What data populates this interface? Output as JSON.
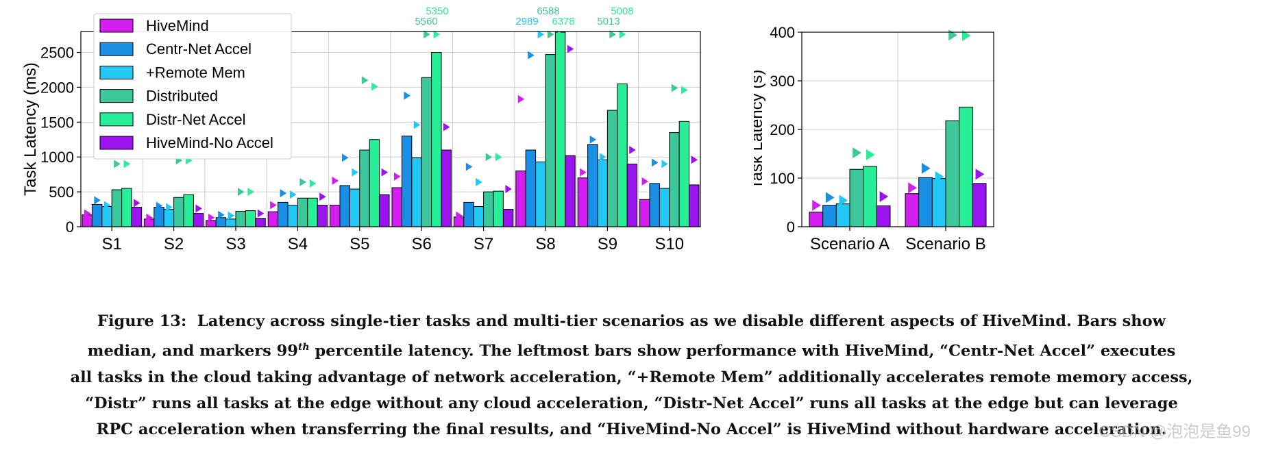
{
  "figure": {
    "caption_label": "Figure 13:",
    "caption_line1": "Latency across single-tier tasks and multi-tier scenarios as we disable different aspects of HiveMind. Bars show",
    "caption_line2a": "median, and markers 99",
    "caption_sup": "th",
    "caption_line2b": " percentile latency. The leftmost bars show performance with HiveMind, “Centr-Net Accel” executes",
    "caption_line3": "all tasks in the cloud taking advantage of network acceleration, “+Remote Mem” additionally accelerates remote memory access,",
    "caption_line4": "“Distr” runs all tasks at the edge without any cloud acceleration, “Distr-Net Accel” runs all tasks at the edge but can leverage",
    "caption_line5": "RPC acceleration when transferring the final results, and “HiveMind-No Accel” is HiveMind without hardware acceleration.",
    "watermark": "CSDN @泡泡是鱼99"
  },
  "chart_data": [
    {
      "type": "bar",
      "title": "",
      "xlabel": "",
      "ylabel": "Task Latency (ms)",
      "ylim": [
        0,
        2800
      ],
      "yticks": [
        0,
        500,
        1000,
        1500,
        2000,
        2500
      ],
      "grid": true,
      "legend_position": "top-left",
      "categories": [
        "S1",
        "S2",
        "S3",
        "S4",
        "S5",
        "S6",
        "S7",
        "S8",
        "S9",
        "S10"
      ],
      "series": [
        {
          "name": "HiveMind",
          "color": "#d21ff0",
          "values": [
            170,
            110,
            90,
            215,
            310,
            560,
            140,
            800,
            700,
            390
          ],
          "p99": [
            190,
            130,
            130,
            310,
            660,
            720,
            160,
            1830,
            780,
            650
          ]
        },
        {
          "name": "Centr-Net Accel",
          "color": "#1a8fe6",
          "values": [
            320,
            280,
            130,
            350,
            590,
            1300,
            350,
            1100,
            1180,
            620
          ],
          "p99": [
            380,
            300,
            170,
            480,
            990,
            1880,
            860,
            2460,
            1250,
            920
          ]
        },
        {
          "name": "+Remote Mem",
          "color": "#22c8f5",
          "values": [
            290,
            250,
            110,
            310,
            540,
            990,
            290,
            930,
            960,
            550
          ],
          "p99": [
            310,
            280,
            160,
            460,
            780,
            1460,
            640,
            2989,
            1000,
            900
          ]
        },
        {
          "name": "Distributed",
          "color": "#3cc89a",
          "values": [
            530,
            420,
            220,
            410,
            1100,
            2140,
            500,
            2470,
            1670,
            1350
          ],
          "p99": [
            900,
            950,
            500,
            640,
            2100,
            5560,
            1000,
            6588,
            5013,
            1990
          ]
        },
        {
          "name": "Distr-Net Accel",
          "color": "#28ee98",
          "values": [
            550,
            460,
            230,
            410,
            1250,
            2500,
            510,
            2790,
            2050,
            1510
          ],
          "p99": [
            900,
            950,
            500,
            620,
            2010,
            5350,
            1000,
            6378,
            5008,
            1960
          ]
        },
        {
          "name": "HiveMind-No Accel",
          "color": "#9a14f0",
          "values": [
            280,
            190,
            120,
            310,
            460,
            1100,
            250,
            1020,
            900,
            600
          ],
          "p99": [
            340,
            260,
            190,
            430,
            780,
            1430,
            540,
            2550,
            1100,
            960
          ]
        }
      ],
      "offscale_labels": [
        {
          "category": "S6",
          "series": "Distr-Net Accel",
          "text": "5350"
        },
        {
          "category": "S6",
          "series": "Distributed",
          "text": "5560"
        },
        {
          "category": "S8",
          "series": "Distributed",
          "text": "6588"
        },
        {
          "category": "S8",
          "series": "+Remote Mem",
          "text": "2989"
        },
        {
          "category": "S8",
          "series": "Distr-Net Accel",
          "text": "6378"
        },
        {
          "category": "S9",
          "series": "Distr-Net Accel",
          "text": "5008"
        },
        {
          "category": "S9",
          "series": "Distributed",
          "text": "5013"
        }
      ]
    },
    {
      "type": "bar",
      "title": "",
      "xlabel": "",
      "ylabel": "Task Latency (s)",
      "ylim": [
        0,
        400
      ],
      "yticks": [
        0,
        100,
        200,
        300,
        400
      ],
      "grid": true,
      "categories": [
        "Scenario A",
        "Scenario B"
      ],
      "series": [
        {
          "name": "HiveMind",
          "color": "#d21ff0",
          "values": [
            30,
            68
          ],
          "p99": [
            44,
            80
          ]
        },
        {
          "name": "Centr-Net Accel",
          "color": "#1a8fe6",
          "values": [
            44,
            101
          ],
          "p99": [
            60,
            120
          ]
        },
        {
          "name": "+Remote Mem",
          "color": "#22c8f5",
          "values": [
            47,
            99
          ],
          "p99": [
            54,
            103
          ]
        },
        {
          "name": "Distributed",
          "color": "#3cc89a",
          "values": [
            118,
            218
          ],
          "p99": [
            152,
            395
          ]
        },
        {
          "name": "Distr-Net Accel",
          "color": "#28ee98",
          "values": [
            124,
            246
          ],
          "p99": [
            148,
            393
          ]
        },
        {
          "name": "HiveMind-No Accel",
          "color": "#9a14f0",
          "values": [
            43,
            89
          ],
          "p99": [
            62,
            108
          ]
        }
      ]
    }
  ]
}
